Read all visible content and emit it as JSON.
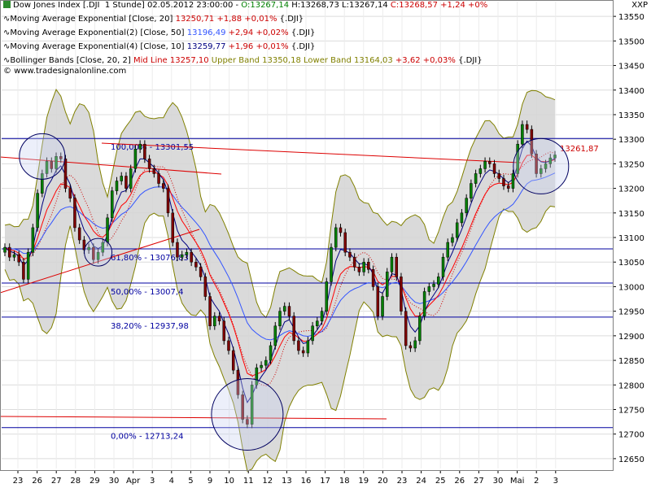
{
  "header": {
    "line1": {
      "name": "Dow Jones Index [.DJI  1 Stunde]",
      "datetime": "02.05.2012 23:00:00 -",
      "open": "O:13267,14",
      "high": "H:13268,73",
      "low": "L:13267,14",
      "close": "C:13268,57",
      "change": "+1,24 +0%"
    },
    "ema20": {
      "label": "Moving Average Exponential [Close, 20]",
      "value": "13250,71",
      "change": "+1,88 +0,01%",
      "sym": "{.DJI}"
    },
    "ema50": {
      "label": "Moving Average Exponential(2) [Close, 50]",
      "value": "13196,49",
      "change": "+2,94 +0,02%",
      "sym": "{.DJI}"
    },
    "ema10": {
      "label": "Moving Average Exponential(4) [Close, 10]",
      "value": "13259,77",
      "change": "+1,96 +0,01%",
      "sym": "{.DJI}"
    },
    "bb": {
      "label": "Bollinger Bands [Close, 20, 2]",
      "mid": "Mid Line 13257,10",
      "upper": "Upper Band 13350,18",
      "lower": "Lower Band 13164,03",
      "change": "+3,62 +0,03%",
      "sym": "{.DJI}"
    },
    "source": "© www.tradesignalonline.com"
  },
  "symbol": "XXP",
  "colors": {
    "ema20": "#ff0000",
    "ema50": "#3355ff",
    "ema10": "#000080",
    "bb": "#808000",
    "fib": "#0000a0",
    "up": "#008000",
    "down": "#800000",
    "band_fill": "#d4d4d4"
  },
  "chart_data": {
    "type": "candlestick",
    "ylim": [
      12630,
      13580
    ],
    "y_ticks": [
      12650,
      12700,
      12750,
      12800,
      12850,
      12900,
      12950,
      13000,
      13050,
      13100,
      13150,
      13200,
      13250,
      13300,
      13350,
      13400,
      13450,
      13500,
      13550
    ],
    "x_tick_labels": [
      "23",
      "26",
      "27",
      "28",
      "29",
      "30",
      "Apr",
      "3",
      "4",
      "5",
      "9",
      "10",
      "11",
      "12",
      "13",
      "16",
      "17",
      "18",
      "19",
      "20",
      "23",
      "24",
      "25",
      "26",
      "27",
      "30",
      "Mai",
      "2",
      "3"
    ],
    "closes": [
      13080,
      13060,
      13065,
      13050,
      13015,
      13070,
      13120,
      13190,
      13230,
      13255,
      13240,
      13265,
      13260,
      13200,
      13180,
      13120,
      13095,
      13075,
      13080,
      13055,
      13070,
      13090,
      13140,
      13195,
      13215,
      13225,
      13200,
      13240,
      13280,
      13290,
      13260,
      13240,
      13230,
      13210,
      13200,
      13150,
      13090,
      13060,
      13065,
      13070,
      13050,
      13040,
      13020,
      12980,
      12920,
      12940,
      12930,
      12890,
      12870,
      12830,
      12780,
      12730,
      12720,
      12800,
      12835,
      12840,
      12850,
      12880,
      12920,
      12950,
      12960,
      12940,
      12890,
      12870,
      12865,
      12890,
      12920,
      12930,
      12950,
      13010,
      13080,
      13120,
      13110,
      13070,
      13060,
      13040,
      13030,
      13050,
      13035,
      13000,
      12940,
      12980,
      13030,
      13060,
      13020,
      12950,
      12880,
      12875,
      12890,
      12940,
      12990,
      13000,
      13005,
      13020,
      13060,
      13090,
      13100,
      13130,
      13150,
      13180,
      13210,
      13230,
      13240,
      13255,
      13250,
      13230,
      13220,
      13205,
      13200,
      13230,
      13290,
      13330,
      13320,
      13270,
      13230,
      13240,
      13250,
      13262,
      13268
    ],
    "ema20": {
      "name": "Moving Average Exponential [Close, 20]",
      "last": 13250.71
    },
    "ema50": {
      "name": "Moving Average Exponential(2) [Close, 50]",
      "last": 13196.49
    },
    "ema10": {
      "name": "Moving Average Exponential(4) [Close, 10]",
      "last": 13259.77
    },
    "bollinger": {
      "name": "Bollinger Bands [Close, 20, 2]",
      "mid": 13257.1,
      "upper": 13350.18,
      "lower": 13164.03
    },
    "fib_levels": [
      {
        "label": "100,00% - 13301,55",
        "value": 13301.55
      },
      {
        "label": "61,80% - 13076,83",
        "value": 13076.83
      },
      {
        "label": "50,00% - 13007,4",
        "value": 13007.4
      },
      {
        "label": "38,20% - 12937,98",
        "value": 12937.98
      },
      {
        "label": "0,00% - 12713,24",
        "value": 12713.24
      }
    ],
    "last_price_label": "13261,87",
    "last_price": 13261.87
  }
}
